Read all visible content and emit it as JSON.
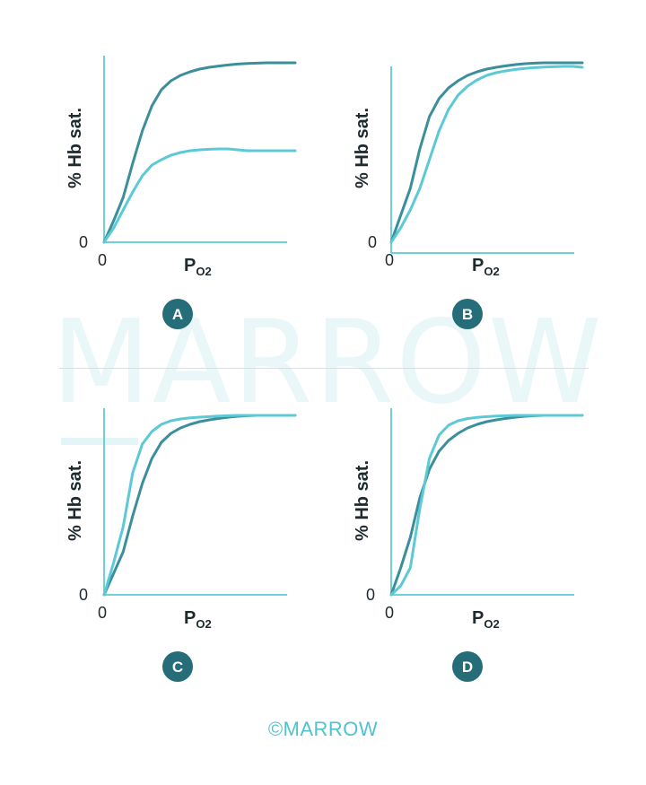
{
  "watermark": "MARROW",
  "copyright": "©MARROW",
  "colors": {
    "dark_curve": "#3a8f9a",
    "light_curve": "#5cc9d6",
    "axis": "#6ed0d9",
    "badge": "#256d78"
  },
  "chart_data": [
    {
      "type": "line",
      "panel": "A",
      "ylabel": "% Hb sat.",
      "xlabel": "P",
      "xlabel_sub": "O2",
      "x_origin_label": "0",
      "y_origin_label": "0",
      "xlim": [
        0,
        100
      ],
      "ylim": [
        0,
        100
      ],
      "series": [
        {
          "tone": "dark",
          "x": [
            0,
            5,
            10,
            15,
            20,
            25,
            30,
            35,
            40,
            45,
            50,
            55,
            60,
            65,
            70,
            75,
            80,
            85,
            90,
            95,
            100
          ],
          "y": [
            0,
            12,
            25,
            44,
            62,
            76,
            85,
            90,
            93,
            95,
            96.5,
            97.5,
            98.2,
            98.8,
            99.3,
            99.6,
            99.8,
            100,
            100,
            100,
            100
          ]
        },
        {
          "tone": "light",
          "x": [
            0,
            5,
            10,
            15,
            20,
            25,
            30,
            35,
            40,
            45,
            50,
            55,
            60,
            65,
            70,
            75,
            80,
            85,
            90,
            95,
            100
          ],
          "y": [
            0,
            8,
            18,
            28,
            37,
            43,
            46,
            48.5,
            50,
            51,
            51.5,
            51.8,
            52,
            52,
            51.5,
            51,
            51,
            51,
            51,
            51,
            51
          ]
        }
      ]
    },
    {
      "type": "line",
      "panel": "B",
      "ylabel": "% Hb sat.",
      "xlabel": "P",
      "xlabel_sub": "O2",
      "x_origin_label": "0",
      "y_origin_label": "0",
      "xlim": [
        0,
        100
      ],
      "ylim": [
        0,
        100
      ],
      "series": [
        {
          "tone": "dark",
          "x": [
            0,
            5,
            10,
            15,
            20,
            25,
            30,
            35,
            40,
            45,
            50,
            55,
            60,
            65,
            70,
            75,
            80,
            85,
            90,
            95,
            100
          ],
          "y": [
            0,
            15,
            30,
            52,
            70,
            80,
            86,
            90,
            93,
            95,
            96.5,
            97.5,
            98.3,
            99,
            99.5,
            99.8,
            100,
            100,
            100,
            100,
            100
          ]
        },
        {
          "tone": "light",
          "x": [
            0,
            5,
            10,
            15,
            20,
            25,
            30,
            35,
            40,
            45,
            50,
            55,
            60,
            65,
            70,
            75,
            80,
            85,
            90,
            95,
            100
          ],
          "y": [
            0,
            8,
            18,
            30,
            46,
            62,
            74,
            82,
            87,
            90.5,
            93,
            94.5,
            95.5,
            96.3,
            96.9,
            97.3,
            97.6,
            97.8,
            98,
            98,
            97.5
          ]
        }
      ]
    },
    {
      "type": "line",
      "panel": "C",
      "ylabel": "% Hb sat.",
      "xlabel": "P",
      "xlabel_sub": "O2",
      "x_origin_label": "0",
      "y_origin_label": "0",
      "xlim": [
        0,
        100
      ],
      "ylim": [
        0,
        100
      ],
      "series": [
        {
          "tone": "dark",
          "x": [
            0,
            5,
            10,
            15,
            20,
            25,
            30,
            35,
            40,
            45,
            50,
            55,
            60,
            65,
            70,
            75,
            80,
            85,
            90,
            95,
            100
          ],
          "y": [
            0,
            12,
            24,
            44,
            62,
            76,
            85,
            90,
            93,
            95,
            96.5,
            97.5,
            98.3,
            99,
            99.5,
            99.8,
            100,
            100,
            100,
            100,
            100
          ]
        },
        {
          "tone": "light",
          "x": [
            0,
            5,
            10,
            15,
            20,
            25,
            30,
            35,
            40,
            45,
            50,
            55,
            60,
            65,
            70,
            75,
            80,
            85,
            90,
            95,
            100
          ],
          "y": [
            0,
            18,
            38,
            68,
            84,
            91,
            95,
            97,
            98,
            98.6,
            99,
            99.3,
            99.6,
            99.8,
            100,
            100,
            100,
            100,
            100,
            100,
            100
          ]
        }
      ]
    },
    {
      "type": "line",
      "panel": "D",
      "ylabel": "% Hb sat.",
      "xlabel": "P",
      "xlabel_sub": "O2",
      "x_origin_label": "0",
      "y_origin_label": "0",
      "xlim": [
        0,
        100
      ],
      "ylim": [
        0,
        100
      ],
      "series": [
        {
          "tone": "dark",
          "x": [
            0,
            5,
            10,
            15,
            20,
            25,
            30,
            35,
            40,
            45,
            50,
            55,
            60,
            65,
            70,
            75,
            80,
            85,
            90,
            95,
            100
          ],
          "y": [
            0,
            15,
            32,
            54,
            70,
            80,
            86,
            90,
            93,
            95,
            96.5,
            97.5,
            98.3,
            99,
            99.5,
            99.8,
            100,
            100,
            100,
            100,
            100
          ]
        },
        {
          "tone": "light",
          "x": [
            0,
            5,
            10,
            15,
            20,
            25,
            30,
            35,
            40,
            45,
            50,
            55,
            60,
            65,
            70,
            75,
            80,
            85,
            90,
            95,
            100
          ],
          "y": [
            0,
            5,
            15,
            48,
            76,
            89,
            94.5,
            97,
            98.2,
            98.9,
            99.3,
            99.6,
            99.8,
            100,
            100,
            100,
            100,
            100,
            100,
            100,
            100
          ]
        }
      ]
    }
  ]
}
